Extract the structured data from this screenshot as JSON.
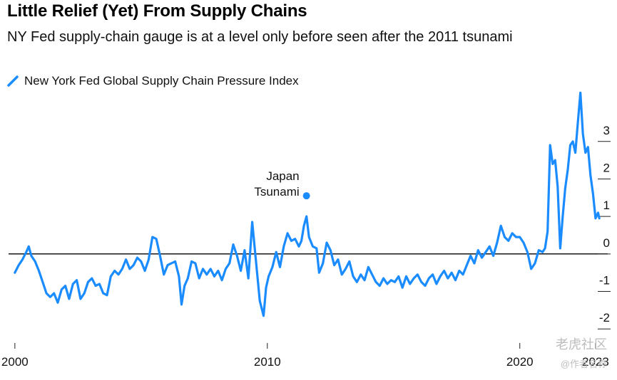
{
  "header": {
    "title": "Little Relief (Yet) From Supply Chains",
    "subtitle": "NY Fed supply-chain gauge is at a level only before seen after the 2011 tsunami"
  },
  "legend": {
    "label": "New York Fed Global Supply Chain Pressure Index",
    "icon": "line-swatch-icon"
  },
  "watermark": {
    "text": "老虎社区",
    "sub": "@作者名称"
  },
  "chart_data": {
    "type": "line",
    "title": "Little Relief (Yet) From Supply Chains",
    "subtitle": "NY Fed supply-chain gauge is at a level only before seen after the 2011 tsunami",
    "xlabel": "",
    "ylabel": "",
    "xlim": [
      1999.75,
      2023.2
    ],
    "ylim": [
      -2.3,
      4.4
    ],
    "x_ticks": [
      2000,
      2010,
      2020,
      2023
    ],
    "x_tick_labels": [
      "2000",
      "2010",
      "2020",
      "2023"
    ],
    "y_ticks": [
      -2,
      -1,
      0,
      1,
      2,
      3
    ],
    "y_tick_labels": [
      "-2",
      "-1",
      "0",
      "1",
      "2",
      "3"
    ],
    "grid": false,
    "zero_line": true,
    "legend_position": "top-left",
    "series": [
      {
        "name": "New York Fed Global Supply Chain Pressure Index",
        "color": "#1a8cff",
        "points": [
          [
            2000.0,
            -0.5
          ],
          [
            2000.15,
            -0.3
          ],
          [
            2000.3,
            -0.15
          ],
          [
            2000.45,
            0.05
          ],
          [
            2000.55,
            0.2
          ],
          [
            2000.65,
            -0.05
          ],
          [
            2000.8,
            -0.2
          ],
          [
            2000.95,
            -0.45
          ],
          [
            2001.1,
            -0.75
          ],
          [
            2001.25,
            -1.05
          ],
          [
            2001.4,
            -1.15
          ],
          [
            2001.55,
            -1.05
          ],
          [
            2001.7,
            -1.3
          ],
          [
            2001.85,
            -0.95
          ],
          [
            2002.0,
            -0.85
          ],
          [
            2002.15,
            -1.2
          ],
          [
            2002.3,
            -0.8
          ],
          [
            2002.45,
            -0.7
          ],
          [
            2002.6,
            -1.2
          ],
          [
            2002.75,
            -1.05
          ],
          [
            2002.9,
            -0.75
          ],
          [
            2003.05,
            -0.65
          ],
          [
            2003.2,
            -0.85
          ],
          [
            2003.35,
            -0.8
          ],
          [
            2003.5,
            -1.05
          ],
          [
            2003.65,
            -1.1
          ],
          [
            2003.8,
            -0.6
          ],
          [
            2003.95,
            -0.45
          ],
          [
            2004.1,
            -0.55
          ],
          [
            2004.25,
            -0.4
          ],
          [
            2004.4,
            -0.15
          ],
          [
            2004.55,
            -0.4
          ],
          [
            2004.7,
            -0.3
          ],
          [
            2004.85,
            -0.1
          ],
          [
            2005.0,
            -0.2
          ],
          [
            2005.15,
            -0.45
          ],
          [
            2005.3,
            -0.15
          ],
          [
            2005.45,
            0.45
          ],
          [
            2005.6,
            0.4
          ],
          [
            2005.75,
            -0.05
          ],
          [
            2005.9,
            -0.55
          ],
          [
            2006.05,
            -0.3
          ],
          [
            2006.2,
            -0.25
          ],
          [
            2006.35,
            -0.2
          ],
          [
            2006.5,
            -0.6
          ],
          [
            2006.6,
            -1.35
          ],
          [
            2006.72,
            -0.85
          ],
          [
            2006.85,
            -0.65
          ],
          [
            2007.0,
            -0.2
          ],
          [
            2007.15,
            -0.25
          ],
          [
            2007.3,
            -0.65
          ],
          [
            2007.45,
            -0.4
          ],
          [
            2007.6,
            -0.55
          ],
          [
            2007.75,
            -0.4
          ],
          [
            2007.9,
            -0.6
          ],
          [
            2008.05,
            -0.45
          ],
          [
            2008.2,
            -0.7
          ],
          [
            2008.35,
            -0.4
          ],
          [
            2008.5,
            -0.25
          ],
          [
            2008.65,
            0.25
          ],
          [
            2008.8,
            -0.05
          ],
          [
            2008.95,
            -0.45
          ],
          [
            2009.1,
            0.1
          ],
          [
            2009.25,
            -0.65
          ],
          [
            2009.4,
            0.85
          ],
          [
            2009.55,
            -0.2
          ],
          [
            2009.7,
            -1.25
          ],
          [
            2009.85,
            -1.65
          ],
          [
            2009.95,
            -0.9
          ],
          [
            2010.05,
            -0.6
          ],
          [
            2010.2,
            -0.35
          ],
          [
            2010.35,
            0.05
          ],
          [
            2010.5,
            -0.35
          ],
          [
            2010.65,
            0.2
          ],
          [
            2010.8,
            0.55
          ],
          [
            2010.95,
            0.35
          ],
          [
            2011.1,
            0.4
          ],
          [
            2011.25,
            0.2
          ],
          [
            2011.35,
            0.35
          ],
          [
            2011.45,
            0.75
          ],
          [
            2011.55,
            1.0
          ],
          [
            2011.65,
            0.45
          ],
          [
            2011.8,
            0.2
          ],
          [
            2011.95,
            0.15
          ],
          [
            2012.05,
            -0.5
          ],
          [
            2012.2,
            -0.25
          ],
          [
            2012.35,
            0.3
          ],
          [
            2012.5,
            0.1
          ],
          [
            2012.65,
            -0.3
          ],
          [
            2012.8,
            -0.15
          ],
          [
            2012.95,
            -0.55
          ],
          [
            2013.1,
            -0.4
          ],
          [
            2013.25,
            -0.2
          ],
          [
            2013.4,
            -0.6
          ],
          [
            2013.55,
            -0.75
          ],
          [
            2013.7,
            -0.55
          ],
          [
            2013.85,
            -0.7
          ],
          [
            2014.0,
            -0.35
          ],
          [
            2014.15,
            -0.55
          ],
          [
            2014.3,
            -0.75
          ],
          [
            2014.45,
            -0.85
          ],
          [
            2014.6,
            -0.65
          ],
          [
            2014.75,
            -0.8
          ],
          [
            2014.9,
            -0.7
          ],
          [
            2015.05,
            -0.75
          ],
          [
            2015.2,
            -0.6
          ],
          [
            2015.35,
            -0.9
          ],
          [
            2015.5,
            -0.6
          ],
          [
            2015.65,
            -0.8
          ],
          [
            2015.8,
            -0.65
          ],
          [
            2015.95,
            -0.55
          ],
          [
            2016.1,
            -0.75
          ],
          [
            2016.25,
            -0.85
          ],
          [
            2016.4,
            -0.65
          ],
          [
            2016.55,
            -0.55
          ],
          [
            2016.7,
            -0.8
          ],
          [
            2016.85,
            -0.6
          ],
          [
            2017.0,
            -0.45
          ],
          [
            2017.15,
            -0.65
          ],
          [
            2017.3,
            -0.5
          ],
          [
            2017.45,
            -0.7
          ],
          [
            2017.6,
            -0.45
          ],
          [
            2017.75,
            -0.55
          ],
          [
            2017.9,
            -0.3
          ],
          [
            2018.05,
            -0.05
          ],
          [
            2018.2,
            -0.25
          ],
          [
            2018.35,
            0.1
          ],
          [
            2018.5,
            -0.1
          ],
          [
            2018.65,
            0.05
          ],
          [
            2018.8,
            0.2
          ],
          [
            2018.95,
            -0.05
          ],
          [
            2019.1,
            0.3
          ],
          [
            2019.25,
            0.75
          ],
          [
            2019.4,
            0.45
          ],
          [
            2019.55,
            0.35
          ],
          [
            2019.7,
            0.55
          ],
          [
            2019.85,
            0.45
          ],
          [
            2020.0,
            0.45
          ],
          [
            2020.15,
            0.3
          ],
          [
            2020.3,
            0.05
          ],
          [
            2020.45,
            -0.4
          ],
          [
            2020.6,
            -0.25
          ],
          [
            2020.75,
            0.1
          ],
          [
            2020.9,
            0.05
          ],
          [
            2021.0,
            0.15
          ],
          [
            2021.1,
            0.6
          ],
          [
            2021.2,
            2.9
          ],
          [
            2021.3,
            2.4
          ],
          [
            2021.4,
            2.5
          ],
          [
            2021.5,
            1.8
          ],
          [
            2021.6,
            0.15
          ],
          [
            2021.7,
            1.0
          ],
          [
            2021.8,
            1.75
          ],
          [
            2021.9,
            2.25
          ],
          [
            2022.0,
            2.9
          ],
          [
            2022.1,
            3.0
          ],
          [
            2022.2,
            2.7
          ],
          [
            2022.3,
            3.5
          ],
          [
            2022.4,
            4.3
          ],
          [
            2022.5,
            3.2
          ],
          [
            2022.6,
            2.7
          ],
          [
            2022.7,
            2.85
          ],
          [
            2022.8,
            2.1
          ],
          [
            2022.9,
            1.6
          ],
          [
            2023.0,
            0.95
          ],
          [
            2023.1,
            1.1
          ],
          [
            2023.15,
            0.95
          ]
        ]
      }
    ],
    "annotations": [
      {
        "x": 2011.55,
        "y": 1.55,
        "label_lines": [
          "Japan",
          "Tsunami"
        ]
      }
    ]
  }
}
